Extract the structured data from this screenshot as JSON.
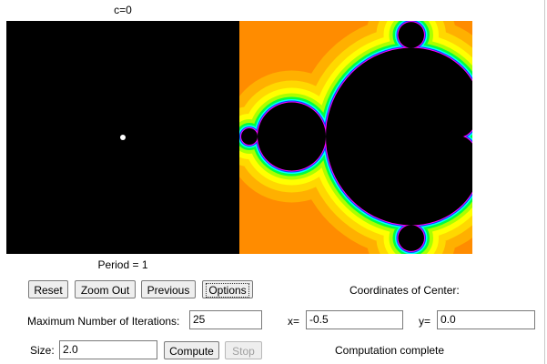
{
  "title": "c=0",
  "period_label": "Period = 1",
  "buttons": {
    "reset": "Reset",
    "zoom_out": "Zoom Out",
    "previous": "Previous",
    "options": "Options",
    "compute": "Compute",
    "stop": "Stop"
  },
  "labels": {
    "coordinates": "Coordinates of Center:",
    "iterations": "Maximum Number of Iterations:",
    "x": "x=",
    "y": "y=",
    "size": "Size:",
    "status": "Computation complete"
  },
  "fields": {
    "iterations": "25",
    "x": "-0.5",
    "y": "0.0",
    "size": "2.0"
  }
}
